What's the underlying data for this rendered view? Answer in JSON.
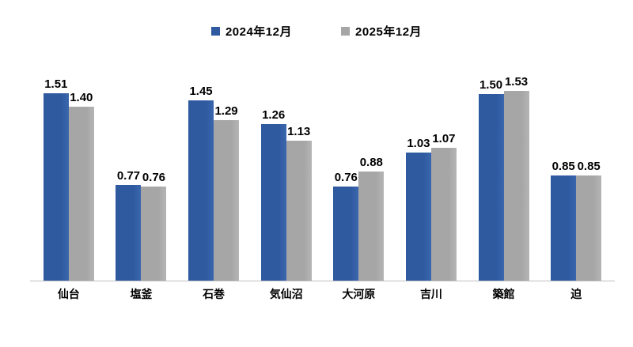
{
  "chart_data": {
    "type": "bar",
    "title": "",
    "categories": [
      "仙台",
      "塩釜",
      "石巻",
      "気仙沼",
      "大河原",
      "吉川",
      "築館",
      "迫"
    ],
    "series": [
      {
        "name": "2024年12月",
        "color": "#2f5aa0",
        "values": [
          1.51,
          0.77,
          1.45,
          1.26,
          0.76,
          1.03,
          1.5,
          0.85
        ]
      },
      {
        "name": "2025年12月",
        "color": "#a6a6a6",
        "values": [
          1.4,
          0.76,
          1.29,
          1.13,
          0.88,
          1.07,
          1.53,
          0.85
        ]
      }
    ],
    "ylim": [
      0,
      1.53
    ],
    "grid": false,
    "legend_position": "top",
    "value_labels": true,
    "axis_line_color": "#bfbfbf"
  }
}
